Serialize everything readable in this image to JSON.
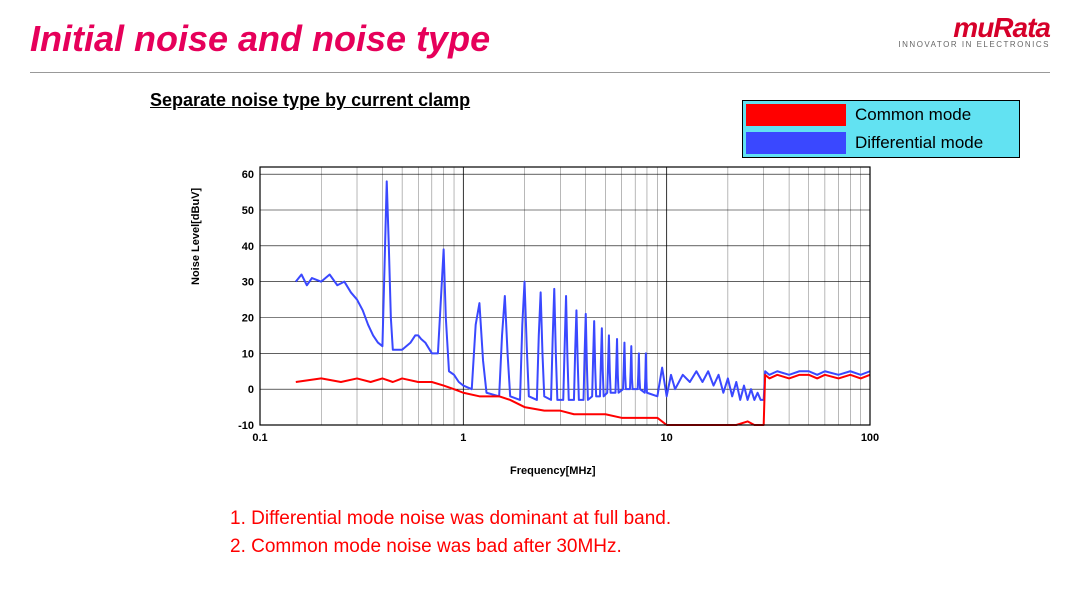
{
  "title": "Initial noise and noise type",
  "logo": {
    "brand": "muRata",
    "tagline": "INNOVATOR IN ELECTRONICS"
  },
  "subtitle": "Separate noise type by current clamp",
  "legend": {
    "bg_color": "#62e2f2",
    "items": [
      {
        "label": "Common mode",
        "color": "#ff0000"
      },
      {
        "label": "Differential mode",
        "color": "#3a48ff"
      }
    ]
  },
  "chart": {
    "type": "line",
    "xlabel": "Frequency[MHz]",
    "ylabel": "Noise Level[dBuV]",
    "xlim": [
      0.1,
      100
    ],
    "ylim": [
      -10,
      62
    ],
    "ytick_step": 10,
    "xscale": "log",
    "xticks": [
      0.1,
      1,
      10,
      100
    ],
    "background_color": "#ffffff",
    "grid_color": "#000000",
    "axis_fontsize": 11,
    "line_width": 2,
    "common": {
      "color": "#ff0000",
      "data": [
        [
          0.15,
          2
        ],
        [
          0.2,
          3
        ],
        [
          0.25,
          2
        ],
        [
          0.3,
          3
        ],
        [
          0.35,
          2
        ],
        [
          0.4,
          3
        ],
        [
          0.45,
          2
        ],
        [
          0.5,
          3
        ],
        [
          0.6,
          2
        ],
        [
          0.7,
          2
        ],
        [
          0.8,
          1
        ],
        [
          0.9,
          0
        ],
        [
          1,
          -1
        ],
        [
          1.2,
          -2
        ],
        [
          1.5,
          -2
        ],
        [
          1.7,
          -3
        ],
        [
          2,
          -5
        ],
        [
          2.5,
          -6
        ],
        [
          3,
          -6
        ],
        [
          3.5,
          -7
        ],
        [
          4,
          -7
        ],
        [
          5,
          -7
        ],
        [
          6,
          -8
        ],
        [
          7,
          -8
        ],
        [
          8,
          -8
        ],
        [
          9,
          -8
        ],
        [
          10,
          -10
        ],
        [
          12,
          -10
        ],
        [
          14,
          -10
        ],
        [
          16,
          -10
        ],
        [
          18,
          -10
        ],
        [
          20,
          -10
        ],
        [
          22,
          -10
        ],
        [
          25,
          -9
        ],
        [
          27,
          -10
        ],
        [
          29,
          -10
        ],
        [
          30,
          -10
        ],
        [
          30.5,
          4
        ],
        [
          32,
          3
        ],
        [
          35,
          4
        ],
        [
          40,
          3
        ],
        [
          45,
          4
        ],
        [
          50,
          4
        ],
        [
          55,
          3
        ],
        [
          60,
          4
        ],
        [
          70,
          3
        ],
        [
          80,
          4
        ],
        [
          90,
          3
        ],
        [
          100,
          4
        ]
      ]
    },
    "differential": {
      "color": "#3a48ff",
      "data": [
        [
          0.15,
          30
        ],
        [
          0.16,
          32
        ],
        [
          0.17,
          29
        ],
        [
          0.18,
          31
        ],
        [
          0.2,
          30
        ],
        [
          0.22,
          32
        ],
        [
          0.24,
          29
        ],
        [
          0.26,
          30
        ],
        [
          0.28,
          27
        ],
        [
          0.3,
          25
        ],
        [
          0.32,
          22
        ],
        [
          0.34,
          18
        ],
        [
          0.36,
          15
        ],
        [
          0.38,
          13
        ],
        [
          0.4,
          12
        ],
        [
          0.41,
          35
        ],
        [
          0.42,
          58
        ],
        [
          0.43,
          40
        ],
        [
          0.44,
          20
        ],
        [
          0.45,
          11
        ],
        [
          0.5,
          11
        ],
        [
          0.55,
          13
        ],
        [
          0.58,
          15
        ],
        [
          0.6,
          15
        ],
        [
          0.62,
          14
        ],
        [
          0.65,
          13
        ],
        [
          0.7,
          10
        ],
        [
          0.75,
          10
        ],
        [
          0.8,
          39
        ],
        [
          0.82,
          20
        ],
        [
          0.85,
          5
        ],
        [
          0.9,
          4
        ],
        [
          0.95,
          2
        ],
        [
          1,
          1
        ],
        [
          1.1,
          0
        ],
        [
          1.15,
          18
        ],
        [
          1.2,
          24
        ],
        [
          1.25,
          8
        ],
        [
          1.3,
          -1
        ],
        [
          1.5,
          -2
        ],
        [
          1.55,
          15
        ],
        [
          1.6,
          26
        ],
        [
          1.65,
          10
        ],
        [
          1.7,
          -2
        ],
        [
          1.9,
          -3
        ],
        [
          1.95,
          18
        ],
        [
          2,
          30
        ],
        [
          2.05,
          12
        ],
        [
          2.1,
          -2
        ],
        [
          2.3,
          -3
        ],
        [
          2.35,
          15
        ],
        [
          2.4,
          27
        ],
        [
          2.45,
          10
        ],
        [
          2.5,
          -2
        ],
        [
          2.7,
          -3
        ],
        [
          2.75,
          14
        ],
        [
          2.8,
          28
        ],
        [
          2.85,
          10
        ],
        [
          2.9,
          -3
        ],
        [
          3.1,
          -3
        ],
        [
          3.15,
          12
        ],
        [
          3.2,
          26
        ],
        [
          3.25,
          9
        ],
        [
          3.3,
          -3
        ],
        [
          3.5,
          -3
        ],
        [
          3.55,
          11
        ],
        [
          3.6,
          22
        ],
        [
          3.65,
          8
        ],
        [
          3.7,
          -3
        ],
        [
          3.9,
          -3
        ],
        [
          3.95,
          10
        ],
        [
          4,
          21
        ],
        [
          4.05,
          7
        ],
        [
          4.1,
          -3
        ],
        [
          4.3,
          -2
        ],
        [
          4.35,
          9
        ],
        [
          4.4,
          19
        ],
        [
          4.45,
          6
        ],
        [
          4.5,
          -2
        ],
        [
          4.7,
          -2
        ],
        [
          4.75,
          8
        ],
        [
          4.8,
          17
        ],
        [
          4.85,
          5
        ],
        [
          4.9,
          -2
        ],
        [
          5.1,
          -1
        ],
        [
          5.15,
          7
        ],
        [
          5.2,
          15
        ],
        [
          5.25,
          5
        ],
        [
          5.3,
          -1
        ],
        [
          5.6,
          -1
        ],
        [
          5.65,
          6
        ],
        [
          5.7,
          14
        ],
        [
          5.75,
          4
        ],
        [
          5.8,
          -1
        ],
        [
          6.1,
          0
        ],
        [
          6.15,
          6
        ],
        [
          6.2,
          13
        ],
        [
          6.25,
          4
        ],
        [
          6.3,
          0
        ],
        [
          6.6,
          0
        ],
        [
          6.65,
          5
        ],
        [
          6.7,
          12
        ],
        [
          6.75,
          3
        ],
        [
          6.8,
          0
        ],
        [
          7.2,
          0
        ],
        [
          7.25,
          4
        ],
        [
          7.3,
          10
        ],
        [
          7.35,
          3
        ],
        [
          7.4,
          0
        ],
        [
          7.8,
          -1
        ],
        [
          7.85,
          3
        ],
        [
          7.9,
          10
        ],
        [
          7.95,
          3
        ],
        [
          8,
          -1
        ],
        [
          9,
          -2
        ],
        [
          9.5,
          6
        ],
        [
          10,
          -2
        ],
        [
          10.5,
          4
        ],
        [
          11,
          0
        ],
        [
          12,
          4
        ],
        [
          13,
          2
        ],
        [
          14,
          5
        ],
        [
          15,
          2
        ],
        [
          16,
          5
        ],
        [
          17,
          1
        ],
        [
          18,
          4
        ],
        [
          19,
          -1
        ],
        [
          20,
          3
        ],
        [
          21,
          -2
        ],
        [
          22,
          2
        ],
        [
          23,
          -3
        ],
        [
          24,
          1
        ],
        [
          25,
          -3
        ],
        [
          26,
          0
        ],
        [
          27,
          -3
        ],
        [
          28,
          -1
        ],
        [
          29,
          -3
        ],
        [
          30,
          -3
        ],
        [
          30.5,
          5
        ],
        [
          32,
          4
        ],
        [
          35,
          5
        ],
        [
          40,
          4
        ],
        [
          45,
          5
        ],
        [
          50,
          5
        ],
        [
          55,
          4
        ],
        [
          60,
          5
        ],
        [
          70,
          4
        ],
        [
          80,
          5
        ],
        [
          90,
          4
        ],
        [
          100,
          5
        ]
      ]
    }
  },
  "notes": [
    "1.  Differential mode noise was dominant at full band.",
    "2. Common mode noise was bad after 30MHz."
  ]
}
